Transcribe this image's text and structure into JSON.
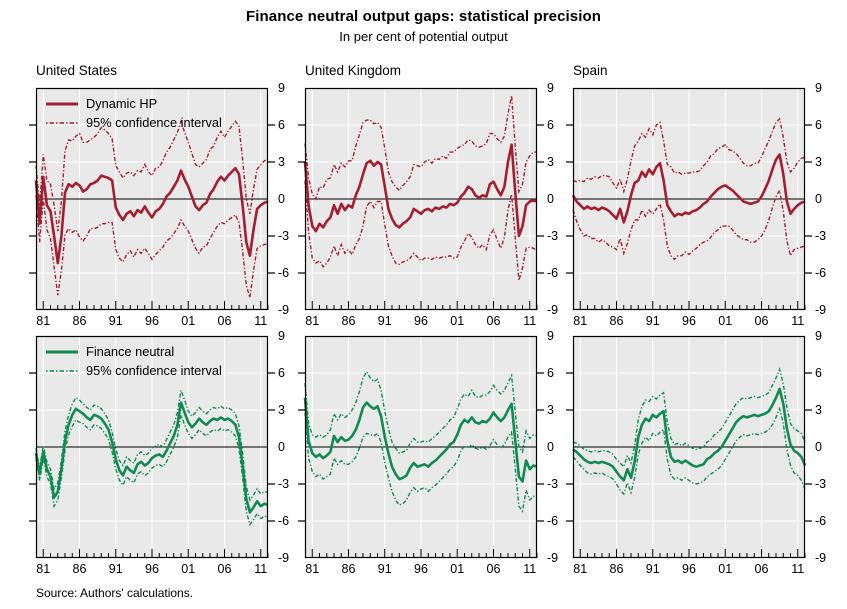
{
  "source_note": "Source: Authors' calculations.",
  "chart_data": {
    "type": "line",
    "title": "Finance neutral output gaps: statistical precision",
    "subtitle": "In per cent of potential output",
    "x_start": 1980,
    "x_step": 0.5,
    "xlim": [
      1980,
      2012
    ],
    "ylim": [
      -9,
      9
    ],
    "ytick_values": [
      9,
      6,
      3,
      0,
      -3,
      -6,
      -9
    ],
    "ytick_labels": [
      "9",
      "6",
      "3",
      "0",
      "-3",
      "-6",
      "-9"
    ],
    "xticks": [
      {
        "year": 1981,
        "label": "81"
      },
      {
        "year": 1986,
        "label": "86"
      },
      {
        "year": 1991,
        "label": "91"
      },
      {
        "year": 1996,
        "label": "96"
      },
      {
        "year": 2001,
        "label": "01"
      },
      {
        "year": 2006,
        "label": "06"
      },
      {
        "year": 2011,
        "label": "11"
      }
    ],
    "grid": true,
    "legend_position": "inside-top-left-of-first-panel-in-each-row",
    "colors": {
      "dynamic_hp": "#a41e31",
      "finance_neutral": "#0f8a50",
      "plot_background": "#e9e9e9",
      "gridline": "#ffffff",
      "axis": "#000000",
      "zero_line": "#000000"
    },
    "legends": {
      "dynamic_hp": [
        {
          "label": "Dynamic HP",
          "style": "solid"
        },
        {
          "label": "95% confidence interval",
          "style": "dashed"
        }
      ],
      "finance_neutral": [
        {
          "label": "Finance neutral",
          "style": "solid"
        },
        {
          "label": "95% confidence interval",
          "style": "dashed"
        }
      ]
    },
    "rows": [
      {
        "measure": "Dynamic HP",
        "color_key": "dynamic_hp",
        "panels": [
          {
            "country": "United States",
            "mean": [
              1.5,
              -2.0,
              1.8,
              -0.5,
              -1.0,
              -3.0,
              -5.2,
              -3.0,
              0.5,
              1.2,
              1.0,
              1.3,
              1.1,
              0.6,
              0.8,
              1.2,
              1.3,
              1.5,
              1.9,
              1.8,
              1.7,
              1.5,
              -0.7,
              -1.3,
              -1.7,
              -1.2,
              -1.0,
              -1.4,
              -0.9,
              -1.1,
              -0.6,
              -1.1,
              -1.5,
              -1.0,
              -0.8,
              -0.4,
              0.2,
              0.5,
              1.0,
              1.5,
              2.3,
              1.6,
              1.0,
              0.2,
              -0.6,
              -0.9,
              -0.5,
              -0.3,
              0.4,
              0.8,
              1.4,
              1.8,
              1.5,
              1.9,
              2.2,
              2.5,
              2.0,
              -0.5,
              -3.5,
              -4.6,
              -2.5,
              -0.8,
              -0.5,
              -0.3,
              -0.2
            ],
            "ci_halfwidth": [
              1.2,
              1.5,
              1.8,
              2.0,
              2.2,
              2.5,
              2.6,
              2.8,
              3.4,
              3.6,
              3.7,
              3.8,
              4.2,
              4.0,
              3.8,
              3.6,
              3.7,
              3.8,
              3.9,
              3.8,
              3.6,
              3.4,
              3.4,
              3.5,
              3.4,
              3.3,
              3.2,
              3.3,
              3.2,
              3.3,
              3.4,
              3.3,
              3.4,
              3.5,
              3.4,
              3.5,
              3.6,
              3.7,
              3.8,
              3.9,
              4.0,
              3.8,
              3.6,
              3.5,
              3.4,
              3.5,
              3.4,
              3.5,
              3.6,
              3.5,
              3.6,
              3.7,
              3.5,
              3.6,
              3.7,
              3.8,
              3.9,
              3.7,
              3.5,
              3.4,
              3.3,
              3.2,
              3.3,
              3.4,
              3.4
            ]
          },
          {
            "country": "United Kingdom",
            "mean": [
              3.0,
              -0.5,
              -2.2,
              -2.6,
              -2.0,
              -2.3,
              -1.8,
              -1.5,
              -0.5,
              -1.2,
              -0.4,
              -0.9,
              -0.5,
              -0.7,
              0.3,
              1.0,
              2.0,
              2.9,
              3.1,
              2.7,
              3.0,
              2.8,
              1.0,
              -0.8,
              -1.6,
              -2.1,
              -2.3,
              -2.0,
              -1.8,
              -1.5,
              -0.8,
              -1.0,
              -1.2,
              -0.9,
              -0.8,
              -1.0,
              -0.7,
              -0.8,
              -0.6,
              -0.7,
              -0.4,
              -0.5,
              -0.3,
              0.2,
              0.5,
              1.0,
              0.8,
              0.3,
              0.1,
              0.3,
              0.2,
              1.2,
              1.4,
              0.8,
              0.3,
              1.0,
              3.0,
              4.4,
              0.5,
              -3.0,
              -2.2,
              -0.5,
              -0.2,
              -0.1,
              -0.2
            ],
            "ci_halfwidth": [
              1.5,
              2.2,
              2.6,
              2.6,
              3.0,
              3.2,
              3.4,
              3.2,
              3.3,
              3.4,
              3.3,
              3.5,
              3.6,
              3.8,
              4.0,
              4.2,
              4.2,
              3.5,
              3.3,
              3.4,
              3.2,
              3.0,
              3.1,
              3.0,
              3.0,
              3.1,
              3.0,
              3.1,
              3.2,
              3.3,
              3.6,
              3.7,
              3.8,
              3.9,
              4.0,
              3.9,
              4.0,
              4.0,
              4.1,
              4.0,
              4.2,
              4.3,
              4.4,
              4.1,
              3.9,
              3.8,
              3.9,
              4.0,
              4.1,
              4.0,
              4.3,
              4.1,
              3.9,
              4.1,
              4.3,
              4.1,
              3.9,
              4.0,
              3.7,
              3.6,
              3.4,
              3.5,
              3.7,
              3.9,
              4.0
            ]
          },
          {
            "country": "Spain",
            "mean": [
              0.3,
              -0.2,
              -0.5,
              -0.8,
              -0.6,
              -0.8,
              -0.7,
              -0.9,
              -0.7,
              -0.8,
              -1.0,
              -1.3,
              -1.6,
              -0.8,
              -1.9,
              -1.0,
              0.3,
              1.3,
              1.5,
              2.2,
              1.8,
              2.4,
              2.0,
              2.6,
              2.9,
              1.5,
              -0.5,
              -1.0,
              -1.4,
              -1.2,
              -1.3,
              -1.1,
              -1.2,
              -1.0,
              -0.9,
              -0.7,
              -0.4,
              -0.2,
              0.2,
              0.5,
              0.8,
              1.0,
              1.1,
              0.9,
              0.7,
              0.4,
              0.1,
              -0.2,
              -0.3,
              -0.4,
              -0.3,
              -0.2,
              0.2,
              0.8,
              1.5,
              2.4,
              3.2,
              3.6,
              2.0,
              -0.2,
              -1.2,
              -0.8,
              -0.5,
              -0.3,
              -0.2
            ],
            "ci_halfwidth": [
              1.2,
              1.6,
              2.0,
              2.2,
              2.3,
              2.4,
              2.5,
              2.6,
              2.6,
              2.7,
              2.8,
              2.6,
              2.5,
              2.4,
              2.5,
              2.6,
              2.8,
              3.0,
              3.2,
              3.1,
              3.2,
              3.3,
              3.2,
              3.4,
              3.3,
              3.2,
              3.3,
              3.6,
              3.5,
              3.4,
              3.3,
              3.2,
              3.3,
              3.2,
              3.1,
              3.0,
              3.1,
              3.2,
              3.3,
              3.2,
              3.3,
              3.2,
              3.3,
              3.1,
              3.2,
              3.3,
              3.2,
              3.1,
              3.0,
              3.1,
              3.2,
              3.1,
              3.2,
              3.3,
              3.2,
              3.1,
              3.0,
              2.9,
              3.0,
              3.2,
              3.4,
              3.3,
              3.5,
              3.6,
              3.6
            ]
          }
        ]
      },
      {
        "measure": "Finance neutral",
        "color_key": "finance_neutral",
        "panels": [
          {
            "country": "United States",
            "mean": [
              -0.5,
              -2.2,
              -0.4,
              -1.8,
              -2.4,
              -4.1,
              -3.6,
              -1.8,
              0.5,
              1.8,
              2.6,
              3.1,
              2.9,
              2.7,
              2.4,
              2.2,
              2.6,
              2.5,
              2.3,
              1.9,
              1.4,
              0.4,
              -1.0,
              -1.9,
              -2.3,
              -1.6,
              -1.9,
              -2.1,
              -1.4,
              -1.2,
              -1.5,
              -1.3,
              -0.9,
              -0.7,
              -0.6,
              -0.8,
              -0.3,
              0.3,
              0.9,
              1.8,
              3.6,
              2.8,
              2.0,
              1.6,
              1.9,
              2.3,
              2.0,
              1.8,
              2.1,
              2.3,
              2.2,
              2.4,
              2.2,
              2.3,
              2.1,
              1.8,
              0.8,
              -1.5,
              -4.2,
              -5.3,
              -4.9,
              -4.4,
              -4.8,
              -4.6,
              -4.7
            ],
            "ci_halfwidth": [
              0.4,
              0.5,
              0.5,
              0.6,
              0.6,
              0.7,
              0.7,
              0.7,
              0.8,
              0.8,
              0.9,
              0.9,
              0.9,
              0.8,
              0.8,
              0.8,
              0.8,
              0.8,
              0.8,
              0.8,
              0.8,
              0.8,
              0.8,
              0.8,
              0.8,
              0.8,
              0.8,
              0.8,
              0.8,
              0.8,
              0.8,
              0.8,
              0.8,
              0.8,
              0.8,
              0.8,
              0.9,
              0.9,
              0.9,
              1.0,
              1.0,
              1.0,
              0.9,
              0.9,
              0.9,
              0.9,
              0.9,
              0.9,
              0.9,
              0.9,
              0.9,
              0.9,
              0.9,
              0.9,
              0.9,
              0.9,
              0.9,
              1.0,
              1.0,
              1.0,
              1.0,
              1.0,
              1.0,
              1.0,
              1.0
            ]
          },
          {
            "country": "United Kingdom",
            "mean": [
              4.0,
              0.5,
              -0.5,
              -0.8,
              -0.6,
              -0.9,
              -0.7,
              -0.4,
              0.9,
              0.4,
              0.8,
              0.5,
              0.6,
              0.9,
              1.4,
              2.2,
              3.2,
              3.6,
              3.3,
              3.1,
              3.3,
              2.5,
              0.8,
              -0.5,
              -1.6,
              -2.2,
              -2.6,
              -2.5,
              -2.3,
              -1.7,
              -1.3,
              -1.6,
              -1.5,
              -1.4,
              -1.6,
              -1.3,
              -1.1,
              -0.8,
              -0.5,
              -0.2,
              0.2,
              0.4,
              1.0,
              1.8,
              2.2,
              2.0,
              2.4,
              2.0,
              1.9,
              2.1,
              2.0,
              2.3,
              2.8,
              2.4,
              2.1,
              2.4,
              3.0,
              3.5,
              0.5,
              -2.4,
              -2.8,
              -1.1,
              -1.8,
              -1.5,
              -1.6
            ],
            "ci_halfwidth": [
              1.2,
              1.4,
              1.5,
              1.6,
              1.6,
              1.7,
              1.7,
              1.8,
              1.8,
              1.8,
              1.9,
              1.9,
              2.0,
              2.1,
              2.2,
              2.3,
              2.4,
              2.5,
              2.3,
              2.2,
              2.2,
              2.1,
              2.1,
              2.0,
              2.0,
              2.1,
              2.1,
              2.1,
              2.0,
              2.0,
              2.0,
              2.0,
              1.9,
              1.9,
              2.0,
              2.0,
              2.0,
              2.0,
              2.0,
              2.0,
              2.0,
              2.0,
              2.1,
              2.1,
              2.1,
              2.1,
              2.2,
              2.1,
              2.1,
              2.1,
              2.2,
              2.2,
              2.2,
              2.2,
              2.2,
              2.2,
              2.2,
              2.3,
              2.3,
              2.4,
              2.4,
              2.4,
              2.5,
              2.5,
              2.5
            ]
          },
          {
            "country": "Spain",
            "mean": [
              -0.2,
              -0.4,
              -0.7,
              -1.0,
              -1.2,
              -1.3,
              -1.2,
              -1.3,
              -1.2,
              -1.3,
              -1.4,
              -1.6,
              -2.0,
              -2.4,
              -2.7,
              -1.8,
              -2.5,
              -1.2,
              0.8,
              1.8,
              2.3,
              2.1,
              2.6,
              2.4,
              2.7,
              2.9,
              0.5,
              -0.8,
              -1.2,
              -1.1,
              -1.3,
              -1.1,
              -1.3,
              -1.5,
              -1.6,
              -1.5,
              -1.4,
              -1.0,
              -0.8,
              -0.5,
              -0.3,
              0.0,
              0.5,
              1.0,
              1.5,
              2.0,
              2.3,
              2.5,
              2.4,
              2.5,
              2.6,
              2.5,
              2.6,
              2.7,
              2.9,
              3.4,
              4.0,
              4.7,
              3.5,
              1.5,
              0.2,
              -0.3,
              -0.5,
              -0.8,
              -1.5
            ],
            "ci_halfwidth": [
              0.6,
              0.7,
              0.8,
              0.8,
              0.9,
              0.9,
              0.9,
              0.9,
              0.9,
              1.0,
              1.0,
              1.0,
              1.0,
              1.1,
              1.1,
              1.1,
              1.2,
              1.3,
              1.4,
              1.5,
              1.5,
              1.6,
              1.5,
              1.5,
              1.5,
              1.5,
              1.5,
              1.5,
              1.4,
              1.4,
              1.4,
              1.4,
              1.4,
              1.4,
              1.4,
              1.4,
              1.4,
              1.4,
              1.4,
              1.5,
              1.5,
              1.5,
              1.5,
              1.5,
              1.5,
              1.5,
              1.5,
              1.5,
              1.5,
              1.5,
              1.5,
              1.5,
              1.5,
              1.5,
              1.5,
              1.6,
              1.6,
              1.6,
              1.6,
              1.7,
              1.7,
              1.8,
              1.8,
              1.9,
              1.9
            ]
          }
        ]
      }
    ]
  }
}
